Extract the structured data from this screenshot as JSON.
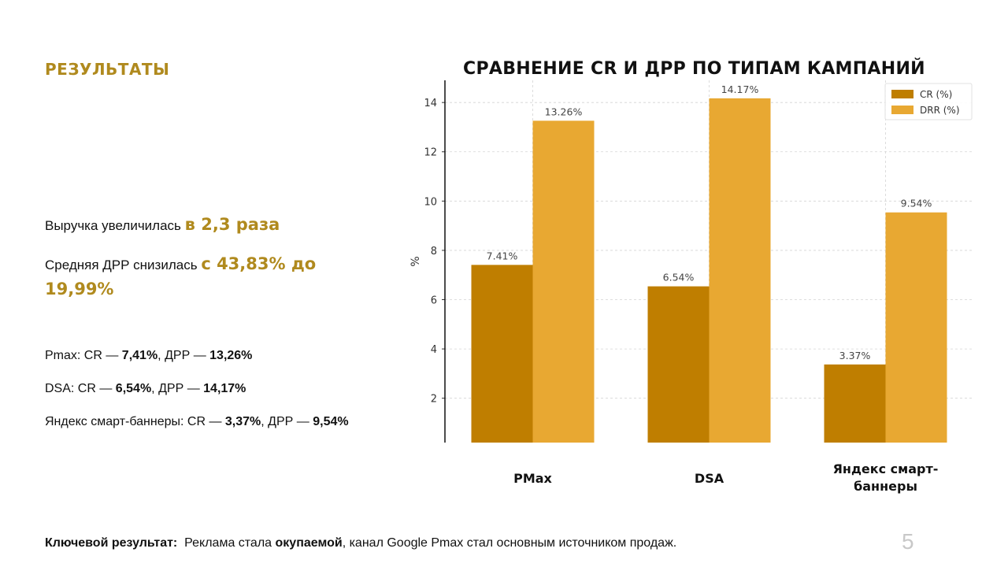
{
  "section_title": "РЕЗУЛЬТАТЫ",
  "highlights": [
    {
      "text": "Выручка увеличилась ",
      "accent": "в 2,3 раза"
    },
    {
      "text": "Средняя ДРР снизилась ",
      "accent": "с 43,83% до 19,99%"
    }
  ],
  "stats": [
    {
      "name": "Pmax",
      "cr_label": "CR",
      "cr": "7,41%",
      "drr_label": "ДРР",
      "drr": "13,26%"
    },
    {
      "name": "DSA",
      "cr_label": "CR",
      "cr": "6,54%",
      "drr_label": "ДРР",
      "drr": "14,17%"
    },
    {
      "name": "Яндекс смарт-баннеры",
      "cr_label": "CR",
      "cr": "3,37%",
      "drr_label": "ДРР",
      "drr": "9,54%"
    }
  ],
  "key_result": {
    "label": "Ключевой результат:",
    "before": "Реклама стала ",
    "bold": "окупаемой",
    "after": ", канал Google Pmax стал основным источником продаж."
  },
  "page_number": "5",
  "chart_data": {
    "type": "bar",
    "title": "СРАВНЕНИЕ CR И ДРР ПО ТИПАМ КАМПАНИЙ",
    "categories": [
      [
        "PMax"
      ],
      [
        "DSA"
      ],
      [
        "Яндекс смарт-",
        "баннеры"
      ]
    ],
    "series": [
      {
        "name": "CR (%)",
        "values": [
          7.41,
          6.54,
          3.37
        ],
        "labels": [
          "7.41%",
          "6.54%",
          "3.37%"
        ],
        "color": "#BF7E00"
      },
      {
        "name": "DRR (%)",
        "values": [
          13.26,
          14.17,
          9.54
        ],
        "labels": [
          "13.26%",
          "14.17%",
          "9.54%"
        ],
        "color": "#E8A832"
      }
    ],
    "ylabel": "%",
    "ylim": [
      0.2,
      14.9
    ],
    "yticks": [
      2,
      4,
      6,
      8,
      10,
      12,
      14
    ],
    "grid": true,
    "legend": "top-right"
  }
}
